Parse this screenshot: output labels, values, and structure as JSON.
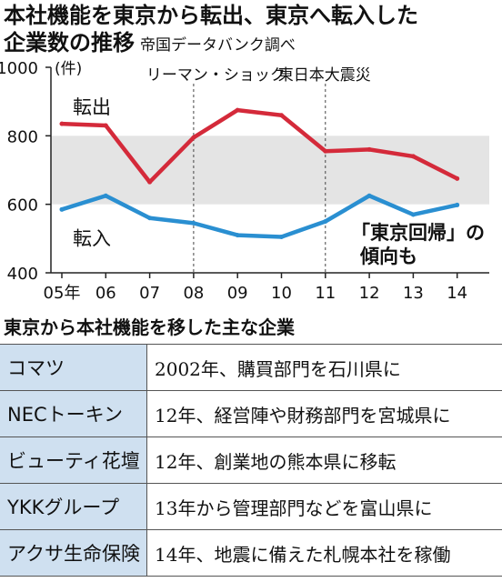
{
  "title": {
    "line1": "本社機能を東京から転出、東京へ転入した",
    "line2": "企業数の推移",
    "source": "帝国データバンク調べ"
  },
  "chart_data": {
    "type": "line",
    "categories": [
      "05年",
      "06",
      "07",
      "08",
      "09",
      "10",
      "11",
      "12",
      "13",
      "14"
    ],
    "series": [
      {
        "name": "転出",
        "color": "#d42a3a",
        "values": [
          835,
          830,
          665,
          795,
          875,
          860,
          755,
          760,
          740,
          675
        ]
      },
      {
        "name": "転入",
        "color": "#2a8fd1",
        "values": [
          585,
          625,
          560,
          545,
          510,
          505,
          550,
          625,
          570,
          598
        ]
      }
    ],
    "ylim": [
      400,
      1000
    ],
    "yticks": [
      400,
      600,
      800,
      1000
    ],
    "yunit": "(件)",
    "shaded_band": [
      600,
      800
    ],
    "events": [
      {
        "label": "リーマン・ショック",
        "x_index": 3
      },
      {
        "label": "東日本大震災",
        "x_index": 6
      }
    ],
    "annotation": {
      "line1": "「東京回帰」の",
      "line2": "傾向も"
    }
  },
  "companies_title": "東京から本社機能を移した主な企業",
  "companies": [
    {
      "name": "コマツ",
      "desc": "2002年、購買部門を石川県に"
    },
    {
      "name": "NECトーキン",
      "desc": "12年、経営陣や財務部門を宮城県に"
    },
    {
      "name": "ビューティ花壇",
      "desc": "12年、創業地の熊本県に移転"
    },
    {
      "name": "YKKグループ",
      "desc": "13年から管理部門などを富山県に"
    },
    {
      "name": "アクサ生命保険",
      "desc": "14年、地震に備えた札幌本社を稼働"
    }
  ]
}
